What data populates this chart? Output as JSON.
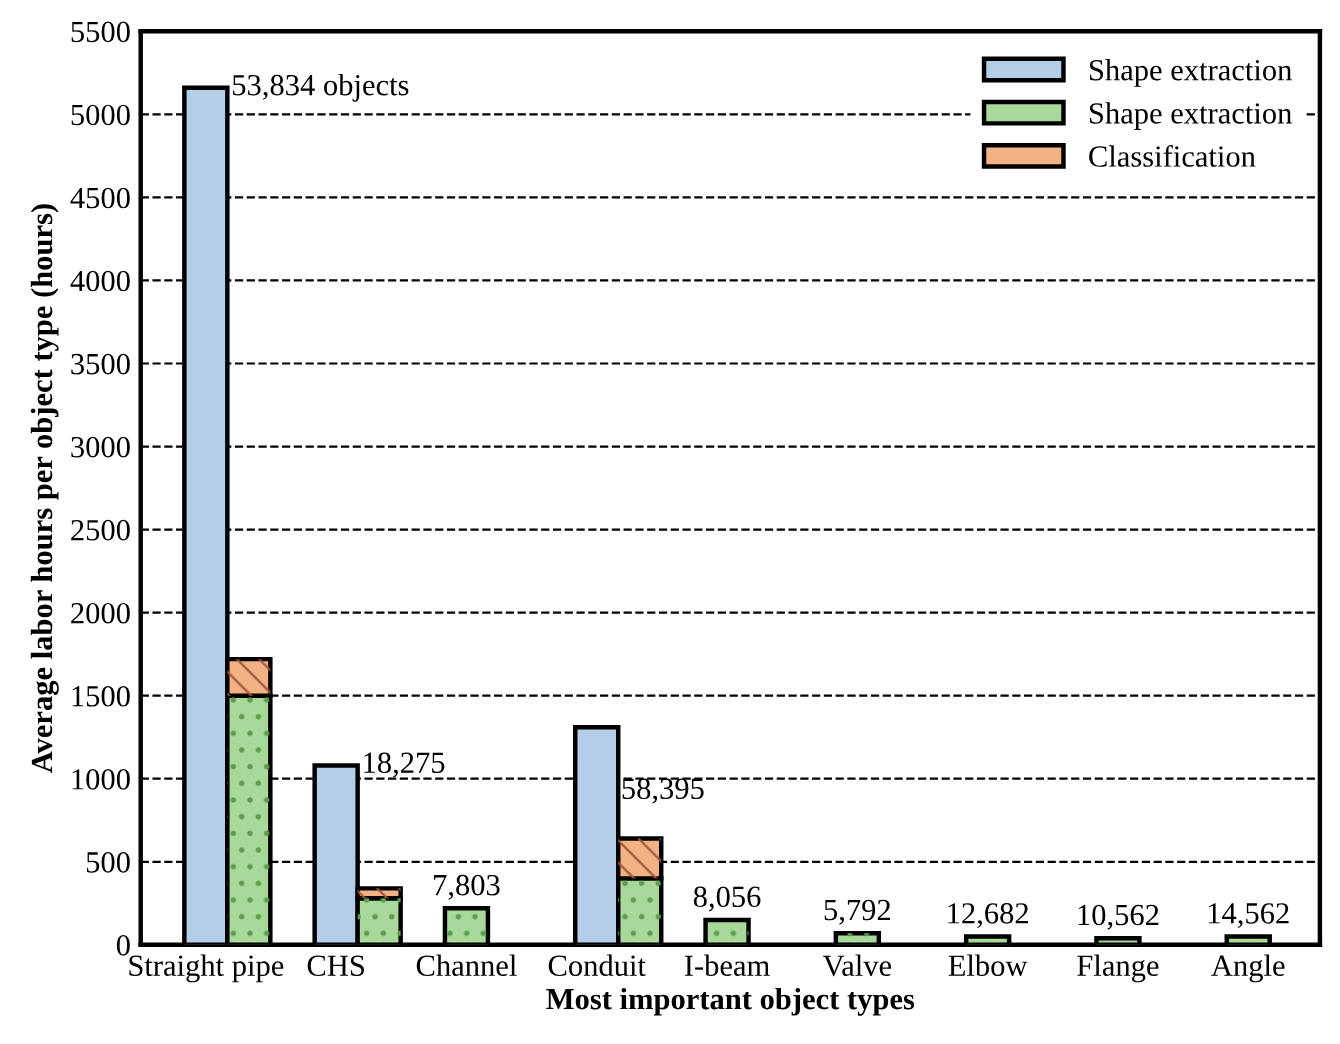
{
  "chart_data": {
    "type": "bar",
    "xlabel": "Most important object types",
    "ylabel": "Average labor hours per object type (hours)",
    "categories": [
      "Straight pipe",
      "CHS",
      "Channel",
      "Conduit",
      "I-beam",
      "Valve",
      "Elbow",
      "Flange",
      "Angle"
    ],
    "series": [
      {
        "name": "Shape extraction",
        "color": "#b4cde9",
        "values": [
          5160,
          1080,
          null,
          1310,
          null,
          null,
          null,
          null,
          null
        ]
      },
      {
        "name": "Shape extraction",
        "color": "#a8d89a",
        "values": [
          1500,
          280,
          220,
          400,
          150,
          70,
          50,
          40,
          50
        ]
      },
      {
        "name": "Classification",
        "color": "#f4b183",
        "values": [
          220,
          60,
          null,
          240,
          null,
          null,
          null,
          null,
          null
        ],
        "base": [
          1500,
          280,
          null,
          400,
          null,
          null,
          null,
          null,
          null
        ]
      }
    ],
    "annotations": [
      "53,834 objects",
      "18,275",
      "7,803",
      "58,395",
      "8,056",
      "5,792",
      "12,682",
      "10,562",
      "14,562"
    ],
    "ylim": [
      0,
      5500
    ],
    "yticks": [
      0,
      500,
      1000,
      1500,
      2000,
      2500,
      3000,
      3500,
      4000,
      4500,
      5000,
      5500
    ],
    "grid": "y",
    "legend": "top right"
  }
}
